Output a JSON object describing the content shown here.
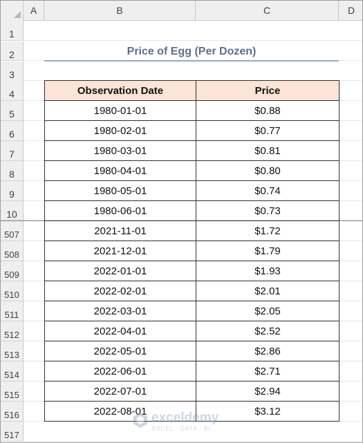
{
  "columns": [
    "A",
    "B",
    "C",
    "D"
  ],
  "rows_top": [
    "1",
    "2",
    "3",
    "4",
    "5",
    "6",
    "7",
    "8",
    "9",
    "10"
  ],
  "rows_bottom": [
    "507",
    "508",
    "509",
    "510",
    "511",
    "512",
    "513",
    "514",
    "515",
    "516",
    "517"
  ],
  "title": "Price of Egg (Per Dozen)",
  "table": {
    "headers": [
      "Observation Date",
      "Price"
    ],
    "rows": [
      [
        "1980-01-01",
        "$0.88"
      ],
      [
        "1980-02-01",
        "$0.77"
      ],
      [
        "1980-03-01",
        "$0.81"
      ],
      [
        "1980-04-01",
        "$0.80"
      ],
      [
        "1980-05-01",
        "$0.74"
      ],
      [
        "1980-06-01",
        "$0.73"
      ],
      [
        "2021-11-01",
        "$1.72"
      ],
      [
        "2021-12-01",
        "$1.79"
      ],
      [
        "2022-01-01",
        "$1.93"
      ],
      [
        "2022-02-01",
        "$2.01"
      ],
      [
        "2022-03-01",
        "$2.05"
      ],
      [
        "2022-04-01",
        "$2.52"
      ],
      [
        "2022-05-01",
        "$2.86"
      ],
      [
        "2022-06-01",
        "$2.71"
      ],
      [
        "2022-07-01",
        "$2.94"
      ],
      [
        "2022-08-01",
        "$3.12"
      ]
    ]
  },
  "watermark": {
    "name": "exceldemy",
    "tagline": "EXCEL · DATA · BI"
  }
}
